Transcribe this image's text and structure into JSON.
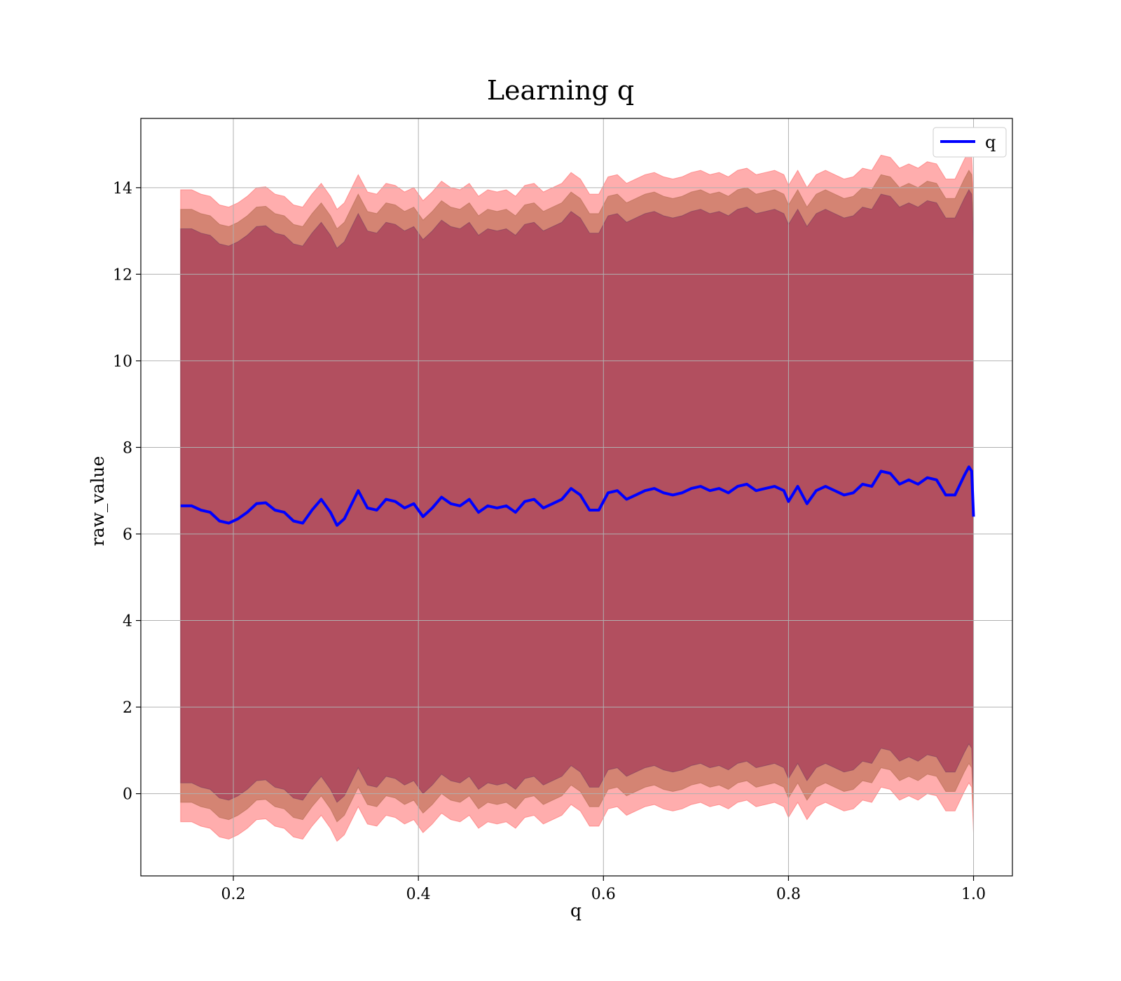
{
  "chart_data": {
    "type": "line",
    "title": "Learning q",
    "xlabel": "q",
    "ylabel": "raw_value",
    "xlim": [
      0.1,
      1.042
    ],
    "ylim": [
      -1.9,
      15.6
    ],
    "xticks": [
      0.2,
      0.4,
      0.6,
      0.8,
      1.0
    ],
    "xtick_labels": [
      "0.2",
      "0.4",
      "0.6",
      "0.8",
      "1.0"
    ],
    "yticks": [
      0,
      2,
      4,
      6,
      8,
      10,
      12,
      14
    ],
    "ytick_labels": [
      "0",
      "2",
      "4",
      "6",
      "8",
      "10",
      "12",
      "14"
    ],
    "grid": true,
    "legend": {
      "position": "top-right",
      "entries": [
        {
          "label": "q",
          "color": "#0000ff"
        }
      ]
    },
    "series": [
      {
        "name": "q",
        "color": "#0000ff",
        "x": [
          0.143,
          0.155,
          0.165,
          0.175,
          0.185,
          0.195,
          0.205,
          0.215,
          0.225,
          0.235,
          0.245,
          0.255,
          0.265,
          0.275,
          0.285,
          0.295,
          0.305,
          0.312,
          0.32,
          0.335,
          0.345,
          0.355,
          0.365,
          0.375,
          0.385,
          0.395,
          0.405,
          0.415,
          0.425,
          0.435,
          0.445,
          0.455,
          0.465,
          0.475,
          0.485,
          0.495,
          0.505,
          0.515,
          0.525,
          0.535,
          0.545,
          0.555,
          0.565,
          0.575,
          0.585,
          0.595,
          0.605,
          0.615,
          0.625,
          0.635,
          0.645,
          0.655,
          0.665,
          0.675,
          0.685,
          0.695,
          0.705,
          0.715,
          0.725,
          0.735,
          0.745,
          0.755,
          0.765,
          0.775,
          0.785,
          0.795,
          0.8,
          0.81,
          0.82,
          0.83,
          0.84,
          0.85,
          0.86,
          0.87,
          0.88,
          0.89,
          0.9,
          0.91,
          0.92,
          0.93,
          0.94,
          0.95,
          0.96,
          0.97,
          0.98,
          0.99,
          0.995,
          0.998,
          1.0
        ],
        "y": [
          6.65,
          6.65,
          6.55,
          6.5,
          6.3,
          6.25,
          6.35,
          6.5,
          6.7,
          6.72,
          6.55,
          6.5,
          6.3,
          6.25,
          6.55,
          6.8,
          6.5,
          6.2,
          6.35,
          7.0,
          6.6,
          6.55,
          6.8,
          6.75,
          6.6,
          6.7,
          6.4,
          6.6,
          6.85,
          6.7,
          6.65,
          6.8,
          6.5,
          6.65,
          6.6,
          6.65,
          6.5,
          6.75,
          6.8,
          6.6,
          6.7,
          6.8,
          7.05,
          6.9,
          6.55,
          6.55,
          6.95,
          7.0,
          6.8,
          6.9,
          7.0,
          7.05,
          6.95,
          6.9,
          6.95,
          7.05,
          7.1,
          7.0,
          7.05,
          6.95,
          7.1,
          7.15,
          7.0,
          7.05,
          7.1,
          7.0,
          6.75,
          7.1,
          6.7,
          7.0,
          7.1,
          7.0,
          6.9,
          6.95,
          7.15,
          7.1,
          7.45,
          7.4,
          7.15,
          7.25,
          7.15,
          7.3,
          7.25,
          6.9,
          6.9,
          7.35,
          7.55,
          7.45,
          6.4
        ]
      }
    ]
  }
}
